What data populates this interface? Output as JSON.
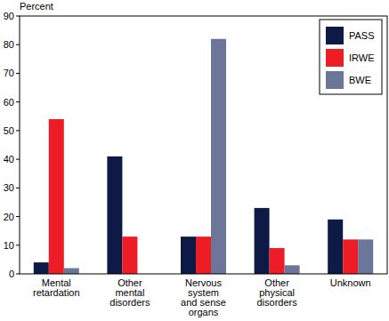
{
  "chart_data": {
    "type": "bar",
    "y_label": "Percent",
    "categories": [
      "Mental\nretardation",
      "Other\nmental\ndisorders",
      "Nervous\nsystem\nand sense\norgans",
      "Other\nphysical\ndisorders",
      "Unknown"
    ],
    "series": [
      {
        "name": "PASS",
        "color": "#0c1a45",
        "values": [
          4,
          41,
          13,
          23,
          19
        ]
      },
      {
        "name": "IRWE",
        "color": "#ee1c25",
        "values": [
          54,
          13,
          13,
          9,
          12
        ]
      },
      {
        "name": "BWE",
        "color": "#6c7699",
        "values": [
          2,
          0,
          82,
          3,
          12
        ]
      }
    ],
    "ylim": [
      0,
      90
    ],
    "yticks": [
      0,
      10,
      20,
      30,
      40,
      50,
      60,
      70,
      80,
      90
    ],
    "grid": false,
    "legend": "upper right"
  }
}
